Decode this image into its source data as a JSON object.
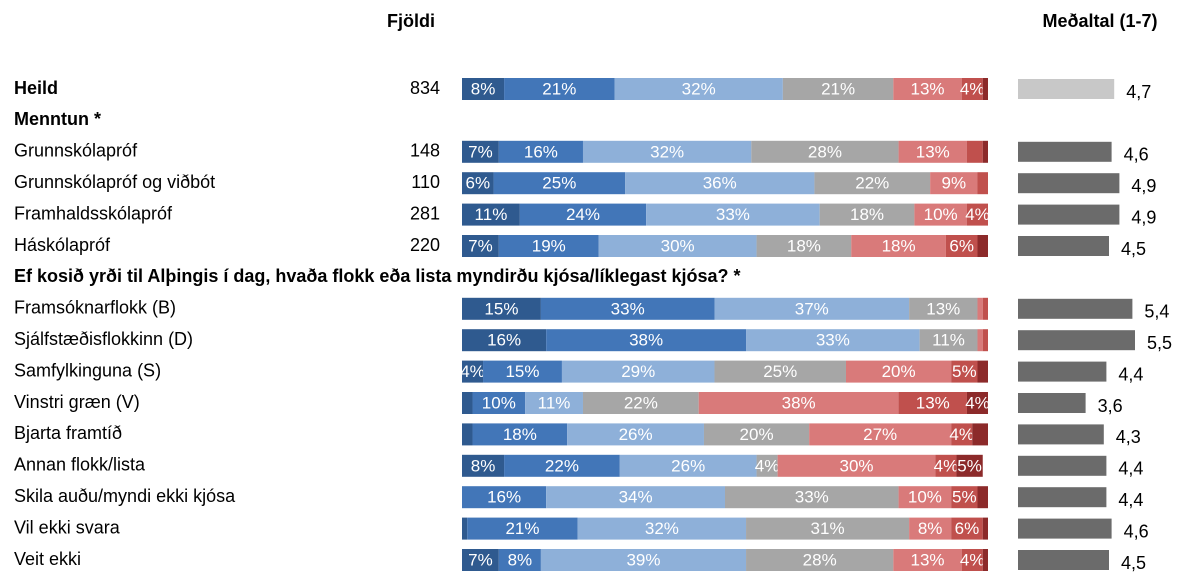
{
  "headers": {
    "count": "Fjöldi",
    "mean": "Meðaltal (1-7)"
  },
  "chart_data": {
    "type": "bar",
    "stacked": true,
    "orientation": "horizontal",
    "colors": [
      "#2f5a8f",
      "#4276b8",
      "#8eb0d9",
      "#a6a6a6",
      "#d97a7a",
      "#c0504d",
      "#8c2a2a"
    ],
    "xlim": [
      0,
      100
    ],
    "mean_lim": [
      1,
      7
    ],
    "rows": [
      {
        "label": "Heild",
        "bold": true,
        "count": 834,
        "values": [
          8,
          21,
          32,
          21,
          13,
          4,
          1
        ],
        "value_labels": [
          "8%",
          "21%",
          "32%",
          "21%",
          "13%",
          "4%",
          null
        ],
        "mean": 4.7,
        "mean_label": "4,7",
        "mean_color": "#c8c8c8"
      },
      {
        "label": "Menntun *",
        "bold": true
      },
      {
        "label": "Grunnskólapróf",
        "count": 148,
        "values": [
          7,
          16,
          32,
          28,
          13,
          3,
          1
        ],
        "value_labels": [
          "7%",
          "16%",
          "32%",
          "28%",
          "13%",
          null,
          null
        ],
        "mean": 4.6,
        "mean_label": "4,6",
        "mean_color": "#6b6b6b"
      },
      {
        "label": "Grunnskólapróf og viðbót",
        "count": 110,
        "values": [
          6,
          25,
          36,
          22,
          9,
          2,
          0
        ],
        "value_labels": [
          "6%",
          "25%",
          "36%",
          "22%",
          "9%",
          null,
          null
        ],
        "mean": 4.9,
        "mean_label": "4,9",
        "mean_color": "#6b6b6b"
      },
      {
        "label": "Framhaldsskólapróf",
        "count": 281,
        "values": [
          11,
          24,
          33,
          18,
          10,
          4,
          0
        ],
        "value_labels": [
          "11%",
          "24%",
          "33%",
          "18%",
          "10%",
          "4%",
          null
        ],
        "mean": 4.9,
        "mean_label": "4,9",
        "mean_color": "#6b6b6b"
      },
      {
        "label": "Háskólapróf",
        "count": 220,
        "values": [
          7,
          19,
          30,
          18,
          18,
          6,
          2
        ],
        "value_labels": [
          "7%",
          "19%",
          "30%",
          "18%",
          "18%",
          "6%",
          null
        ],
        "mean": 4.5,
        "mean_label": "4,5",
        "mean_color": "#6b6b6b"
      },
      {
        "label": "Ef kosið yrði til Alþingis í dag, hvaða flokk eða lista myndirðu kjósa/líklegast kjósa? *",
        "bold": true
      },
      {
        "label": "Framsóknarflokk (B)",
        "values": [
          15,
          33,
          37,
          13,
          1,
          1,
          0
        ],
        "value_labels": [
          "15%",
          "33%",
          "37%",
          "13%",
          null,
          null,
          null
        ],
        "mean": 5.4,
        "mean_label": "5,4",
        "mean_color": "#6b6b6b"
      },
      {
        "label": "Sjálfstæðisflokkinn (D)",
        "values": [
          16,
          38,
          33,
          11,
          1,
          1,
          0
        ],
        "value_labels": [
          "16%",
          "38%",
          "33%",
          "11%",
          null,
          null,
          null
        ],
        "mean": 5.5,
        "mean_label": "5,5",
        "mean_color": "#6b6b6b"
      },
      {
        "label": "Samfylkinguna (S)",
        "values": [
          4,
          15,
          29,
          25,
          20,
          5,
          2
        ],
        "value_labels": [
          "4%",
          "15%",
          "29%",
          "25%",
          "20%",
          "5%",
          null
        ],
        "mean": 4.4,
        "mean_label": "4,4",
        "mean_color": "#6b6b6b"
      },
      {
        "label": "Vinstri græn (V)",
        "values": [
          2,
          10,
          11,
          22,
          38,
          13,
          4
        ],
        "value_labels": [
          null,
          "10%",
          "11%",
          "22%",
          "38%",
          "13%",
          "4%"
        ],
        "mean": 3.6,
        "mean_label": "3,6",
        "mean_color": "#6b6b6b"
      },
      {
        "label": "Bjarta framtíð",
        "values": [
          2,
          18,
          26,
          20,
          27,
          4,
          3
        ],
        "value_labels": [
          null,
          "18%",
          "26%",
          "20%",
          "27%",
          "4%",
          null
        ],
        "mean": 4.3,
        "mean_label": "4,3",
        "mean_color": "#6b6b6b"
      },
      {
        "label": "Annan flokk/lista",
        "values": [
          8,
          22,
          26,
          4,
          30,
          4,
          5
        ],
        "value_labels": [
          "8%",
          "22%",
          "26%",
          "4%",
          "30%",
          "4%",
          "5%"
        ],
        "mean": 4.4,
        "mean_label": "4,4",
        "mean_color": "#6b6b6b"
      },
      {
        "label": "Skila auðu/myndi ekki kjósa",
        "values": [
          0,
          16,
          34,
          33,
          10,
          5,
          2
        ],
        "value_labels": [
          null,
          "16%",
          "34%",
          "33%",
          "10%",
          "5%",
          null
        ],
        "mean": 4.4,
        "mean_label": "4,4",
        "mean_color": "#6b6b6b"
      },
      {
        "label": "Vil ekki svara",
        "values": [
          1,
          21,
          32,
          31,
          8,
          6,
          1
        ],
        "value_labels": [
          null,
          "21%",
          "32%",
          "31%",
          "8%",
          "6%",
          null
        ],
        "mean": 4.6,
        "mean_label": "4,6",
        "mean_color": "#6b6b6b"
      },
      {
        "label": "Veit ekki",
        "values": [
          7,
          8,
          39,
          28,
          13,
          4,
          1
        ],
        "value_labels": [
          "7%",
          "8%",
          "39%",
          "28%",
          "13%",
          "4%",
          null
        ],
        "mean": 4.5,
        "mean_label": "4,5",
        "mean_color": "#6b6b6b"
      }
    ]
  }
}
